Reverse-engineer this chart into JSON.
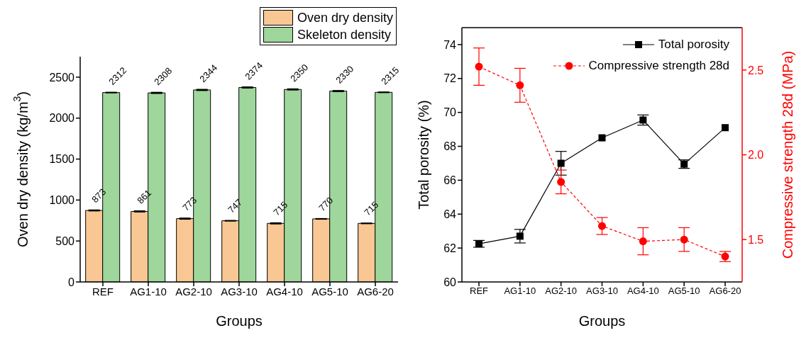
{
  "chart_data": [
    {
      "type": "bar",
      "categories": [
        "REF",
        "AG1-10",
        "AG2-10",
        "AG3-10",
        "AG4-10",
        "AG5-10",
        "AG6-20"
      ],
      "xlabel": "Groups",
      "ylabel": "Oven dry density (kg/m$^{3}$)",
      "ylim": [
        0,
        2750
      ],
      "yticks": [
        0,
        500,
        1000,
        1500,
        2000,
        2500
      ],
      "legend": "top right",
      "data_labels": true,
      "series": [
        {
          "name": "Oven dry density",
          "color": "#f9c794",
          "values": [
            873,
            861,
            773,
            747,
            715,
            770,
            715
          ],
          "errors": [
            5,
            6,
            6,
            3,
            6,
            3,
            3
          ]
        },
        {
          "name": "Skeleton density",
          "color": "#9ed69b",
          "values": [
            2312,
            2308,
            2344,
            2374,
            2350,
            2330,
            2315
          ],
          "errors": [
            3,
            6,
            6,
            6,
            6,
            6,
            3
          ]
        }
      ]
    },
    {
      "type": "line",
      "categories": [
        "REF",
        "AG1-10",
        "AG2-10",
        "AG3-10",
        "AG4-10",
        "AG5-10",
        "AG6-20"
      ],
      "xlabel": "Groups",
      "ylabel": "Total porosity (%)",
      "y2label": "Compressive strength 28d (MPa)",
      "ylim": [
        60,
        75
      ],
      "yticks": [
        60,
        62,
        64,
        66,
        68,
        70,
        72,
        74
      ],
      "y2lim": [
        1.25,
        2.75
      ],
      "y2ticks": [
        {
          "value": 1.5,
          "label": "1.5"
        },
        {
          "value": 2,
          "label": "2.0"
        },
        {
          "value": 2.5,
          "label": "2.5"
        }
      ],
      "legend": "top right",
      "series": [
        {
          "name": "Total porosity",
          "color": "#000000",
          "type": "line",
          "marker": "square",
          "line_style": "solid",
          "values": [
            62.25,
            62.7,
            67.0,
            68.5,
            69.55,
            66.95,
            69.1
          ],
          "errors": [
            0.2,
            0.4,
            0.7,
            null,
            0.3,
            0.25,
            null
          ]
        },
        {
          "name": "Compressive strength 28d",
          "color": "#ff0000",
          "type": "line",
          "axis": "y2",
          "marker": "circle",
          "line_style": "dashed",
          "values": [
            2.52,
            2.41,
            1.84,
            1.58,
            1.49,
            1.5,
            1.4
          ],
          "errors": [
            0.11,
            0.1,
            0.07,
            0.05,
            0.08,
            0.07,
            0.03
          ]
        }
      ]
    }
  ]
}
